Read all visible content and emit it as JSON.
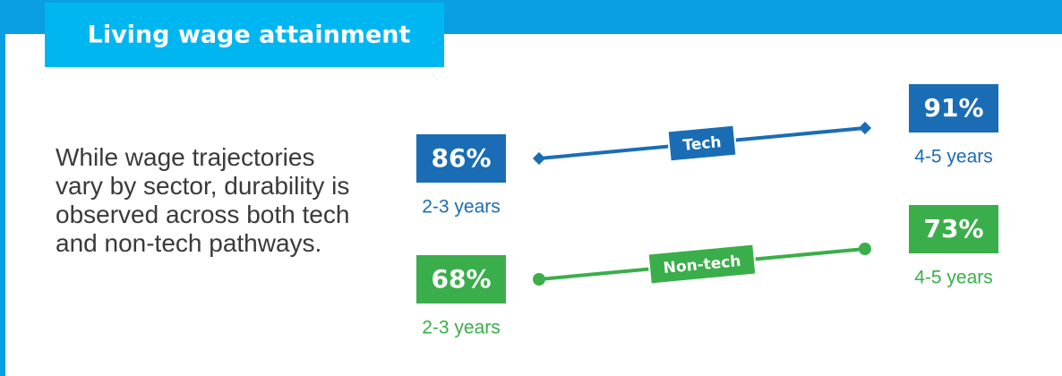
{
  "title": "Living wage attainment",
  "description": "While wage trajectories vary by sector, durability is observed across both tech and non-tech pathways.",
  "chart_data": {
    "type": "slope",
    "categories": [
      "2-3 years",
      "4-5 years"
    ],
    "series": [
      {
        "name": "Tech",
        "color": "#1a6db5",
        "values": [
          86,
          91
        ],
        "value_labels": [
          "86%",
          "91%"
        ],
        "marker": "diamond"
      },
      {
        "name": "Non-tech",
        "color": "#3aae4a",
        "values": [
          68,
          73
        ],
        "value_labels": [
          "68%",
          "73%"
        ],
        "marker": "circle"
      }
    ]
  }
}
